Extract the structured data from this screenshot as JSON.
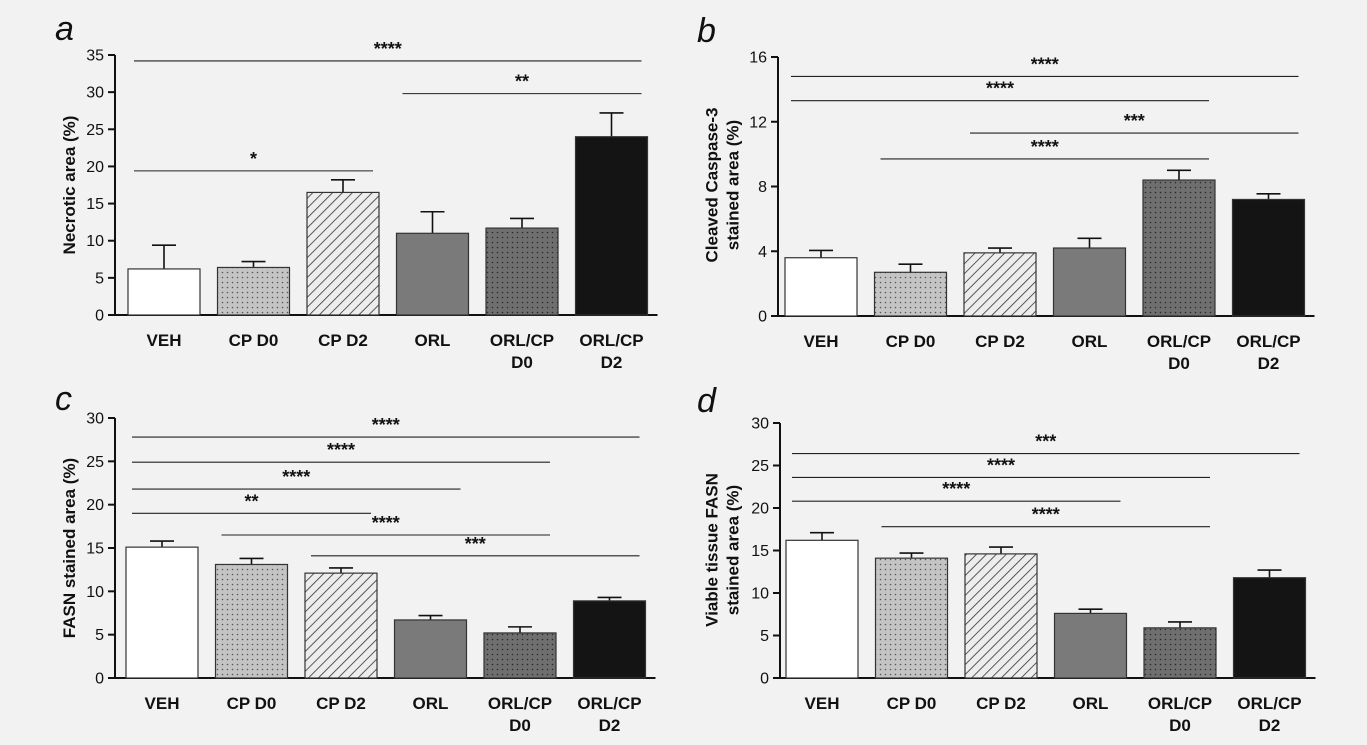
{
  "chart_data": [
    {
      "panel": "a",
      "type": "bar",
      "ylabel": [
        "Necrotic area (%)"
      ],
      "categories": [
        [
          "VEH"
        ],
        [
          "CP D0"
        ],
        [
          "CP D2"
        ],
        [
          "ORL"
        ],
        [
          "ORL/CP",
          "D0"
        ],
        [
          "ORL/CP",
          "D2"
        ]
      ],
      "values": [
        6.2,
        6.4,
        16.5,
        11.0,
        11.7,
        24.0
      ],
      "errors": [
        3.2,
        0.8,
        1.7,
        2.9,
        1.3,
        3.2
      ],
      "ylim": [
        0,
        35
      ],
      "yticks": [
        0,
        5,
        10,
        15,
        20,
        25,
        30,
        35
      ],
      "significance": [
        {
          "from": 0,
          "to": 5,
          "label": "****",
          "level": 34.2
        },
        {
          "from": 3,
          "to": 5,
          "label": "**",
          "level": 29.8
        },
        {
          "from": 0,
          "to": 2,
          "label": "*",
          "level": 19.4
        }
      ]
    },
    {
      "panel": "b",
      "type": "bar",
      "ylabel": [
        "Cleaved Caspase-3",
        "stained area (%)"
      ],
      "categories": [
        [
          "VEH"
        ],
        [
          "CP D0"
        ],
        [
          "CP D2"
        ],
        [
          "ORL"
        ],
        [
          "ORL/CP",
          "D0"
        ],
        [
          "ORL/CP",
          "D2"
        ]
      ],
      "values": [
        3.6,
        2.7,
        3.9,
        4.2,
        8.4,
        7.2
      ],
      "errors": [
        0.45,
        0.5,
        0.3,
        0.6,
        0.6,
        0.35
      ],
      "ylim": [
        0,
        16
      ],
      "yticks": [
        0,
        4,
        8,
        12,
        16
      ],
      "significance": [
        {
          "from": 0,
          "to": 5,
          "label": "****",
          "level": 14.8
        },
        {
          "from": 0,
          "to": 4,
          "label": "****",
          "level": 13.3
        },
        {
          "from": 2,
          "to": 5,
          "label": "***",
          "level": 11.3
        },
        {
          "from": 1,
          "to": 4,
          "label": "****",
          "level": 9.7
        }
      ]
    },
    {
      "panel": "c",
      "type": "bar",
      "ylabel": [
        "FASN stained area (%)"
      ],
      "categories": [
        [
          "VEH"
        ],
        [
          "CP D0"
        ],
        [
          "CP D2"
        ],
        [
          "ORL"
        ],
        [
          "ORL/CP",
          "D0"
        ],
        [
          "ORL/CP",
          "D2"
        ]
      ],
      "values": [
        15.1,
        13.1,
        12.1,
        6.7,
        5.2,
        8.9
      ],
      "errors": [
        0.7,
        0.7,
        0.6,
        0.5,
        0.7,
        0.4
      ],
      "ylim": [
        0,
        30
      ],
      "yticks": [
        0,
        5,
        10,
        15,
        20,
        25,
        30
      ],
      "significance": [
        {
          "from": 0,
          "to": 5,
          "label": "****",
          "level": 27.8
        },
        {
          "from": 0,
          "to": 4,
          "label": "****",
          "level": 24.9
        },
        {
          "from": 0,
          "to": 3,
          "label": "****",
          "level": 21.8
        },
        {
          "from": 0,
          "to": 2,
          "label": "**",
          "level": 19.0
        },
        {
          "from": 1,
          "to": 4,
          "label": "****",
          "level": 16.5
        },
        {
          "from": 2,
          "to": 5,
          "label": "***",
          "level": 14.1
        }
      ]
    },
    {
      "panel": "d",
      "type": "bar",
      "ylabel": [
        "Viable tissue FASN",
        "stained area (%)"
      ],
      "categories": [
        [
          "VEH"
        ],
        [
          "CP D0"
        ],
        [
          "CP D2"
        ],
        [
          "ORL"
        ],
        [
          "ORL/CP",
          "D0"
        ],
        [
          "ORL/CP",
          "D2"
        ]
      ],
      "values": [
        16.2,
        14.1,
        14.6,
        7.6,
        5.9,
        11.8
      ],
      "errors": [
        0.9,
        0.6,
        0.8,
        0.5,
        0.7,
        0.9
      ],
      "ylim": [
        0,
        30
      ],
      "yticks": [
        0,
        5,
        10,
        15,
        20,
        25,
        30
      ],
      "significance": [
        {
          "from": 0,
          "to": 5,
          "label": "***",
          "level": 26.4
        },
        {
          "from": 0,
          "to": 4,
          "label": "****",
          "level": 23.6
        },
        {
          "from": 0,
          "to": 3,
          "label": "****",
          "level": 20.8
        },
        {
          "from": 1,
          "to": 4,
          "label": "****",
          "level": 17.8
        }
      ]
    }
  ]
}
